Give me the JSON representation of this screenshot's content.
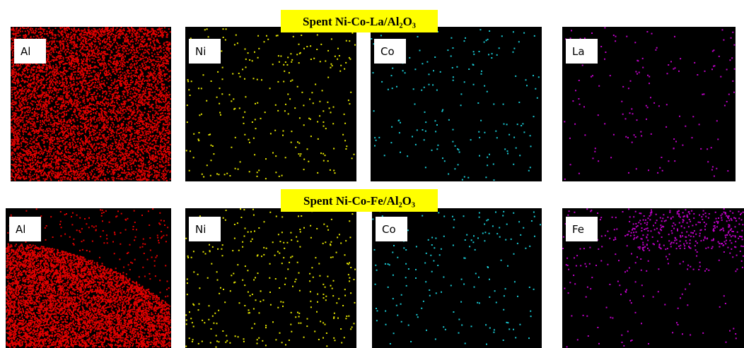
{
  "rows": [
    {
      "title": "Spent Ni-Co-La/Al₂O₃",
      "panels": [
        "Al",
        "Ni",
        "Co",
        "La"
      ]
    },
    {
      "title": "Spent Ni-Co-Fe/Al₂O₃",
      "panels": [
        "Al",
        "Ni",
        "Co",
        "Fe"
      ]
    }
  ]
}
